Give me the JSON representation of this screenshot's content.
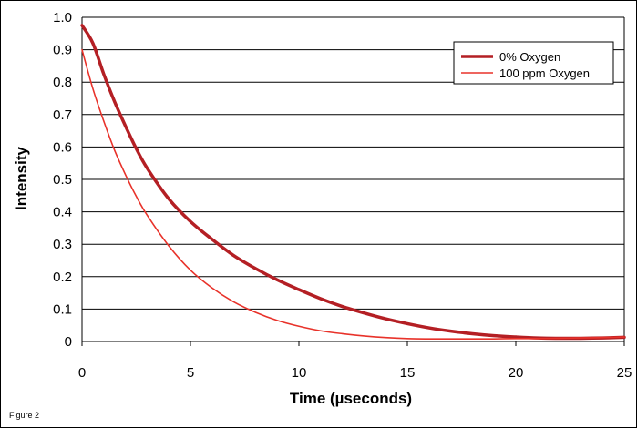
{
  "caption": "Figure 2",
  "chart_data": {
    "type": "line",
    "title": "",
    "xlabel": "Time (µseconds)",
    "ylabel": "Intensity",
    "xlim": [
      0,
      25
    ],
    "ylim": [
      0,
      1.0
    ],
    "xticks": [
      "0",
      "5",
      "10",
      "15",
      "20",
      "25"
    ],
    "yticks": [
      "0",
      "0.1",
      "0.2",
      "0.3",
      "0.4",
      "0.5",
      "0.6",
      "0.7",
      "0.8",
      "0.9",
      "1.0"
    ],
    "grid": "horizontal",
    "legend_position": "top-right",
    "series": [
      {
        "name": "0% Oxygen",
        "color": "#b41f24",
        "style": "thick",
        "x": [
          0,
          0.5,
          1,
          1.5,
          2,
          2.5,
          3,
          4,
          5,
          6,
          7,
          8,
          9,
          10,
          11,
          12,
          13,
          14,
          15,
          16,
          17,
          18,
          19,
          20,
          21,
          22,
          23,
          24,
          25
        ],
        "y": [
          0.975,
          0.92,
          0.825,
          0.74,
          0.665,
          0.595,
          0.535,
          0.44,
          0.37,
          0.315,
          0.265,
          0.225,
          0.19,
          0.16,
          0.132,
          0.108,
          0.088,
          0.07,
          0.055,
          0.042,
          0.032,
          0.024,
          0.018,
          0.014,
          0.011,
          0.01,
          0.01,
          0.011,
          0.013
        ]
      },
      {
        "name": "100 ppm Oxygen",
        "color": "#e8322a",
        "style": "thin",
        "x": [
          0,
          0.5,
          1,
          1.5,
          2,
          2.5,
          3,
          4,
          5,
          6,
          7,
          8,
          9,
          10,
          11,
          12,
          13,
          14,
          15,
          16,
          17,
          18,
          19,
          20,
          21,
          22,
          23,
          24,
          25
        ],
        "y": [
          0.9,
          0.78,
          0.68,
          0.59,
          0.515,
          0.448,
          0.39,
          0.295,
          0.22,
          0.165,
          0.122,
          0.09,
          0.065,
          0.047,
          0.033,
          0.024,
          0.017,
          0.012,
          0.009,
          0.008,
          0.008,
          0.008,
          0.008,
          0.009,
          0.009,
          0.01,
          0.011,
          0.012,
          0.014
        ]
      }
    ]
  }
}
